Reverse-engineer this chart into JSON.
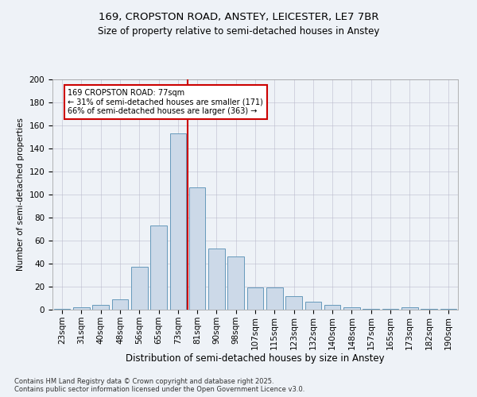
{
  "title1": "169, CROPSTON ROAD, ANSTEY, LEICESTER, LE7 7BR",
  "title2": "Size of property relative to semi-detached houses in Anstey",
  "xlabel": "Distribution of semi-detached houses by size in Anstey",
  "ylabel": "Number of semi-detached properties",
  "categories": [
    "23sqm",
    "31sqm",
    "40sqm",
    "48sqm",
    "56sqm",
    "65sqm",
    "73sqm",
    "81sqm",
    "90sqm",
    "98sqm",
    "107sqm",
    "115sqm",
    "123sqm",
    "132sqm",
    "140sqm",
    "148sqm",
    "157sqm",
    "165sqm",
    "173sqm",
    "182sqm",
    "190sqm"
  ],
  "values": [
    1,
    2,
    4,
    9,
    37,
    73,
    153,
    106,
    53,
    46,
    19,
    19,
    12,
    7,
    4,
    2,
    1,
    1,
    2,
    1,
    1
  ],
  "bar_color": "#ccd9e8",
  "bar_edge_color": "#6699bb",
  "vline_x": 6.5,
  "vline_color": "#cc0000",
  "annotation_title": "169 CROPSTON ROAD: 77sqm",
  "annotation_line1": "← 31% of semi-detached houses are smaller (171)",
  "annotation_line2": "66% of semi-detached houses are larger (363) →",
  "annotation_box_color": "#ffffff",
  "annotation_box_edge": "#cc0000",
  "ylim": [
    0,
    200
  ],
  "yticks": [
    0,
    20,
    40,
    60,
    80,
    100,
    120,
    140,
    160,
    180,
    200
  ],
  "footer1": "Contains HM Land Registry data © Crown copyright and database right 2025.",
  "footer2": "Contains public sector information licensed under the Open Government Licence v3.0.",
  "bg_color": "#eef2f7",
  "plot_bg_color": "#eef2f7",
  "font_family": "DejaVu Sans",
  "title1_fontsize": 9.5,
  "title2_fontsize": 8.5,
  "xlabel_fontsize": 8.5,
  "ylabel_fontsize": 7.5,
  "tick_fontsize": 7.5,
  "footer_fontsize": 6.0
}
